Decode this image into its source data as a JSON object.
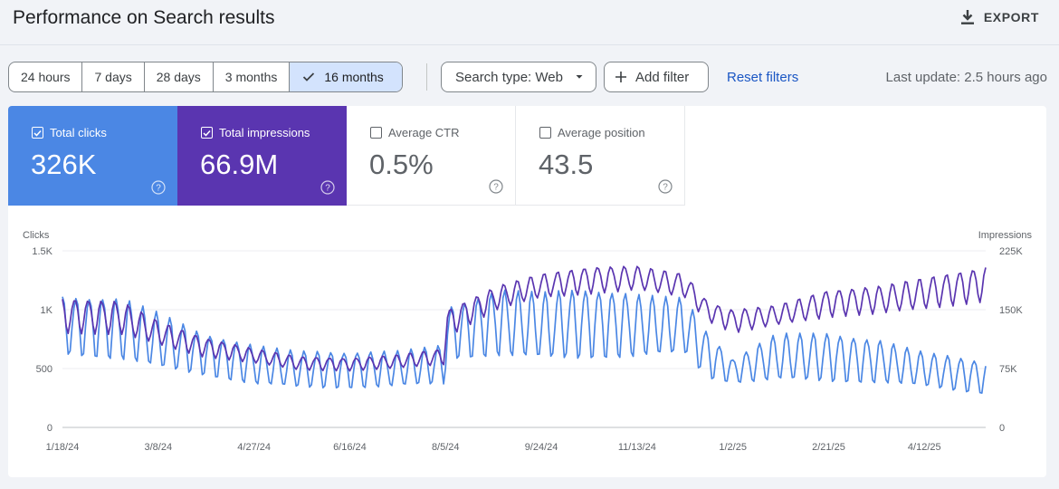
{
  "header": {
    "title": "Performance on Search results",
    "export_label": "EXPORT"
  },
  "toolbar": {
    "ranges": [
      {
        "label": "24 hours",
        "active": false
      },
      {
        "label": "7 days",
        "active": false
      },
      {
        "label": "28 days",
        "active": false
      },
      {
        "label": "3 months",
        "active": false
      },
      {
        "label": "16 months",
        "active": true
      }
    ],
    "search_type": "Search type: Web",
    "add_filter": "Add filter",
    "reset_filters": "Reset filters",
    "last_update": "Last update: 2.5 hours ago"
  },
  "metrics": [
    {
      "label": "Total clicks",
      "value": "326K",
      "checked": true,
      "color": "#4b87e4"
    },
    {
      "label": "Total impressions",
      "value": "66.9M",
      "checked": true,
      "color": "#5a35b0"
    },
    {
      "label": "Average CTR",
      "value": "0.5%",
      "checked": false
    },
    {
      "label": "Average position",
      "value": "43.5",
      "checked": false
    }
  ],
  "chart_data": {
    "type": "line",
    "left_axis": {
      "label": "Clicks",
      "ticks": [
        "0",
        "500",
        "1K",
        "1.5K"
      ],
      "range": [
        0,
        1500
      ]
    },
    "right_axis": {
      "label": "Impressions",
      "ticks": [
        "0",
        "75K",
        "150K",
        "225K"
      ],
      "range": [
        0,
        225000
      ]
    },
    "x_tick_labels": [
      "1/18/24",
      "3/8/24",
      "4/27/24",
      "6/16/24",
      "8/5/24",
      "9/24/24",
      "11/13/24",
      "1/2/25",
      "2/21/25",
      "4/12/25"
    ],
    "x_range_dates": [
      "2024-01-18",
      "2025-05-14"
    ],
    "grid": true,
    "series": [
      {
        "axis": "left",
        "color": "#4b87e4",
        "weekly_points": [
          {
            "date": "2024-01-18",
            "high": 1110,
            "low": 600
          },
          {
            "date": "2024-02-18",
            "high": 1100,
            "low": 550
          },
          {
            "date": "2024-03-08",
            "high": 980,
            "low": 480
          },
          {
            "date": "2024-03-31",
            "high": 800,
            "low": 430
          },
          {
            "date": "2024-04-27",
            "high": 700,
            "low": 350
          },
          {
            "date": "2024-05-20",
            "high": 650,
            "low": 320
          },
          {
            "date": "2024-06-16",
            "high": 640,
            "low": 320
          },
          {
            "date": "2024-07-10",
            "high": 650,
            "low": 330
          },
          {
            "date": "2024-08-04",
            "high": 700,
            "low": 350
          },
          {
            "date": "2024-08-06",
            "high": 1020,
            "low": 560
          },
          {
            "date": "2024-09-01",
            "high": 1170,
            "low": 580
          },
          {
            "date": "2024-09-24",
            "high": 1150,
            "low": 550
          },
          {
            "date": "2024-10-20",
            "high": 1180,
            "low": 560
          },
          {
            "date": "2024-11-13",
            "high": 1130,
            "low": 570
          },
          {
            "date": "2024-12-08",
            "high": 1100,
            "low": 600
          },
          {
            "date": "2024-12-20",
            "high": 800,
            "low": 400
          },
          {
            "date": "2025-01-02",
            "high": 580,
            "low": 370
          },
          {
            "date": "2025-01-25",
            "high": 800,
            "low": 380
          },
          {
            "date": "2025-02-21",
            "high": 800,
            "low": 370
          },
          {
            "date": "2025-03-20",
            "high": 740,
            "low": 360
          },
          {
            "date": "2025-04-12",
            "high": 640,
            "low": 330
          },
          {
            "date": "2025-05-14",
            "high": 560,
            "low": 270
          }
        ]
      },
      {
        "axis": "right",
        "color": "#5a35b0",
        "weekly_points": [
          {
            "date": "2024-01-18",
            "high": 165000,
            "low": 120000
          },
          {
            "date": "2024-02-18",
            "high": 160000,
            "low": 118000
          },
          {
            "date": "2024-03-08",
            "high": 135000,
            "low": 105000
          },
          {
            "date": "2024-03-31",
            "high": 115000,
            "low": 90000
          },
          {
            "date": "2024-04-27",
            "high": 100000,
            "low": 82000
          },
          {
            "date": "2024-05-20",
            "high": 90000,
            "low": 73000
          },
          {
            "date": "2024-06-16",
            "high": 88000,
            "low": 72000
          },
          {
            "date": "2024-07-10",
            "high": 92000,
            "low": 75000
          },
          {
            "date": "2024-08-04",
            "high": 100000,
            "low": 80000
          },
          {
            "date": "2024-08-06",
            "high": 150000,
            "low": 115000
          },
          {
            "date": "2024-09-01",
            "high": 180000,
            "low": 150000
          },
          {
            "date": "2024-09-24",
            "high": 195000,
            "low": 165000
          },
          {
            "date": "2024-10-20",
            "high": 205000,
            "low": 170000
          },
          {
            "date": "2024-11-13",
            "high": 205000,
            "low": 175000
          },
          {
            "date": "2024-12-08",
            "high": 195000,
            "low": 165000
          },
          {
            "date": "2024-12-20",
            "high": 160000,
            "low": 135000
          },
          {
            "date": "2025-01-02",
            "high": 150000,
            "low": 120000
          },
          {
            "date": "2025-01-25",
            "high": 155000,
            "low": 130000
          },
          {
            "date": "2025-02-21",
            "high": 175000,
            "low": 140000
          },
          {
            "date": "2025-03-20",
            "high": 180000,
            "low": 145000
          },
          {
            "date": "2025-04-12",
            "high": 190000,
            "low": 150000
          },
          {
            "date": "2025-05-14",
            "high": 205000,
            "low": 160000
          }
        ]
      }
    ]
  }
}
